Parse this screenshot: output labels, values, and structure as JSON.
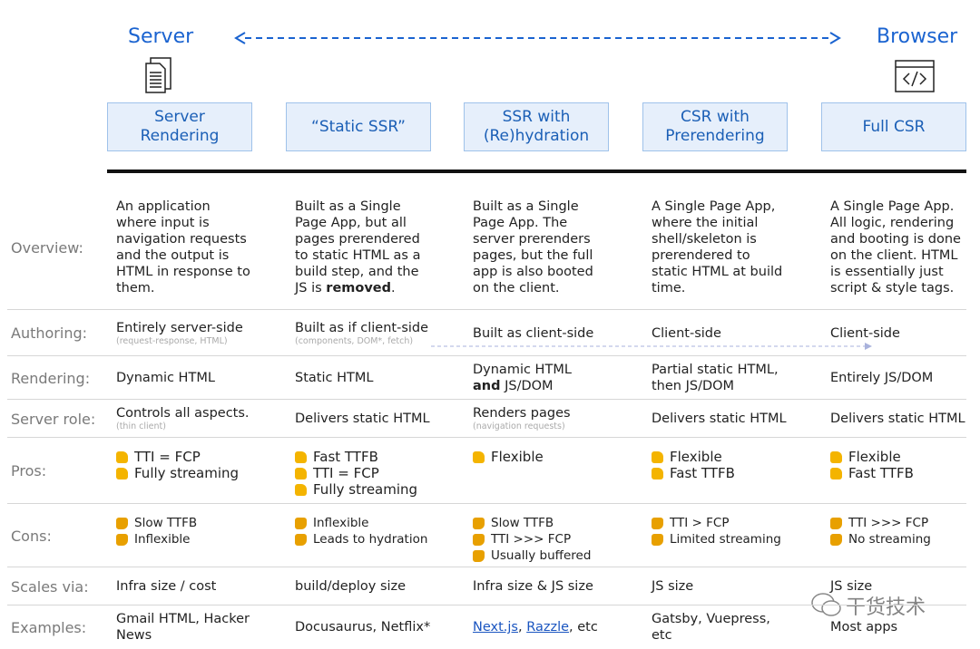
{
  "header": {
    "server": "Server",
    "browser": "Browser"
  },
  "columns": [
    "Server Rendering",
    "“Static SSR”",
    "SSR with (Re)hydration",
    "CSR with Prerendering",
    "Full CSR"
  ],
  "rows": [
    {
      "label": "Overview:",
      "cells": [
        "An application where input is navigation requests and the output is HTML in response to them.",
        {
          "parts": [
            {
              "text": "Built as a Single Page App, but all pages prerendered to static HTML as a build step, and the JS is "
            },
            {
              "text": "removed",
              "bold": true
            },
            {
              "text": "."
            }
          ]
        },
        "Built as a Single Page App. The server prerenders pages, but the full app is also booted on the client.",
        "A Single Page App, where the initial shell/skeleton is prerendered to static HTML at build time.",
        "A Single Page App. All logic, rendering and booting is done on the client. HTML is essentially just script & style tags."
      ]
    },
    {
      "label": "Authoring:",
      "cells": [
        {
          "text": "Entirely server-side",
          "note": "(request-response, HTML)"
        },
        {
          "text": "Built as if client-side",
          "note": "(components, DOM*, fetch)"
        },
        "Built as client-side",
        "Client-side",
        "Client-side"
      ]
    },
    {
      "label": "Rendering:",
      "cells": [
        "Dynamic HTML",
        "Static HTML",
        {
          "parts": [
            {
              "text": "Dynamic HTML"
            },
            {
              "text": "and",
              "bold": true,
              "newline": true
            },
            {
              "text": " JS/DOM"
            }
          ]
        },
        "Partial static HTML, then JS/DOM",
        "Entirely JS/DOM"
      ]
    },
    {
      "label": "Server role:",
      "cells": [
        {
          "text": "Controls all aspects.",
          "note": "(thin client)"
        },
        "Delivers static HTML",
        {
          "text": "Renders pages",
          "note": "(navigation requests)"
        },
        "Delivers static HTML",
        "Delivers static HTML"
      ]
    },
    {
      "label": "Pros:",
      "icon": "up",
      "cells": [
        {
          "items": [
            "TTI = FCP",
            "Fully streaming"
          ]
        },
        {
          "items": [
            "Fast TTFB",
            "TTI = FCP",
            "Fully streaming"
          ]
        },
        {
          "items": [
            "Flexible"
          ]
        },
        {
          "items": [
            "Flexible",
            "Fast TTFB"
          ]
        },
        {
          "items": [
            "Flexible",
            "Fast TTFB"
          ]
        }
      ]
    },
    {
      "label": "Cons:",
      "icon": "down",
      "cells": [
        {
          "items": [
            "Slow TTFB",
            "Inflexible"
          ]
        },
        {
          "items": [
            "Inflexible",
            "Leads to hydration"
          ]
        },
        {
          "items": [
            "Slow TTFB",
            "TTI >>> FCP",
            "Usually buffered"
          ]
        },
        {
          "items": [
            "TTI > FCP",
            "Limited streaming"
          ]
        },
        {
          "items": [
            "TTI >>> FCP",
            "No streaming"
          ]
        }
      ]
    },
    {
      "label": "Scales via:",
      "cells": [
        "Infra size / cost",
        "build/deploy size",
        "Infra size & JS size",
        "JS size",
        "JS size"
      ]
    },
    {
      "label": "Examples:",
      "cells": [
        "Gmail HTML, Hacker News",
        "Docusaurus, Netflix*",
        {
          "parts": [
            {
              "text": "Next.js",
              "link": true
            },
            {
              "text": ", "
            },
            {
              "text": "Razzle",
              "link": true
            },
            {
              "text": ", etc"
            }
          ]
        },
        "Gatsby, Vuepress, etc",
        "Most apps"
      ]
    }
  ],
  "watermark": "干货技术"
}
